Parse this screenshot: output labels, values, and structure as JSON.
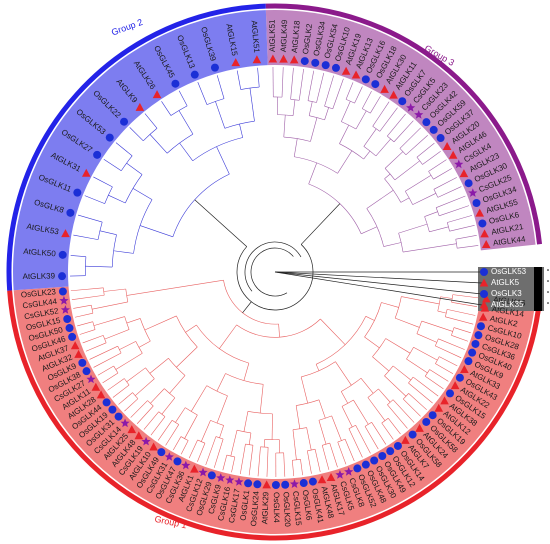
{
  "groups": [
    {
      "id": "group1",
      "label": "Group 1",
      "color": "#e8232a",
      "fill": "#f07f7f"
    },
    {
      "id": "group2",
      "label": "Group 2",
      "color": "#2323e8",
      "fill": "#7d7df0"
    },
    {
      "id": "group3",
      "label": "Group 3",
      "color": "#8b1a8b",
      "fill": "#c086c0"
    },
    {
      "id": "outgroup",
      "label": "",
      "color": "#000000",
      "fill": "#6e6e6e"
    }
  ],
  "branch_colors": {
    "group1": "#e86060",
    "group2": "#3a3ad8",
    "group3": "#a060a8",
    "root": "#222222"
  },
  "markers": {
    "circle": "#1b2fd6",
    "triangle": "#e8232a",
    "star": "#8b1aa8"
  },
  "group3_leaves": [
    "AtGLK51",
    "AtGLK49",
    "AtGLK18",
    "OsGLK2",
    "OsGLK34",
    "OsGLK54",
    "OsGLK10",
    "AtGLK19",
    "AtGLK13",
    "OsGLK16",
    "OsGLK18",
    "AtGLK30",
    "AtGLK11",
    "OsGLK7",
    "CsGLK5",
    "CsGLK23",
    "OsGLK42",
    "OsGLK59",
    "OsGLK37",
    "AtGLK20",
    "AtGLK46",
    "CsGLK4",
    "AtGLK23",
    "OsGLK30",
    "CsGLK25",
    "OsGLK34",
    "AtGLK55",
    "OsGLK6",
    "AtGLK21",
    "AtGLK44"
  ],
  "group3_markers": [
    "triangle",
    "triangle",
    "triangle",
    "circle",
    "circle",
    "circle",
    "circle",
    "triangle",
    "triangle",
    "circle",
    "circle",
    "triangle",
    "triangle",
    "circle",
    "star",
    "star",
    "circle",
    "circle",
    "circle",
    "triangle",
    "triangle",
    "star",
    "triangle",
    "circle",
    "star",
    "circle",
    "triangle",
    "circle",
    "triangle",
    "triangle"
  ],
  "outgroup_leaves": [
    "OsGLK53",
    "AtGLK5",
    "OsGLK3",
    "AtGLK35"
  ],
  "outgroup_markers": [
    "circle",
    "triangle",
    "circle",
    "triangle"
  ],
  "group1_leaves": [
    "AtGLK16",
    "AtGLK14",
    "AtGLK2",
    "CsGLK10",
    "OsGLK28",
    "CsGLK36",
    "OsGLK40",
    "OsGLK9",
    "AtGLK33",
    "OsGLK43",
    "AtGLK22",
    "OsGLK15",
    "AtGLK38",
    "AtGLK12",
    "OsGLK19",
    "OsGLK58",
    "AtGLK24",
    "OsGLK58",
    "AtGLK7",
    "OsGLK14",
    "OsGLK12",
    "OsGLK49",
    "OsGLK30",
    "OsGLK48",
    "OsGLK52",
    "CsGLK8",
    "CsGLK5",
    "AtGLK17",
    "AtGLK48",
    "OsGLK41",
    "OsGLK6",
    "CsGLK15",
    "OsGLK20",
    "OsGLK4",
    "AtGLK29",
    "OsGLK24",
    "OsGLK1",
    "CsGLK17",
    "CsGLK16",
    "CsGLK9",
    "OsGLK29",
    "CsGLK12",
    "AtGLK1",
    "CsGLK36",
    "OsGLK47",
    "CsGLK31",
    "OsGLK49",
    "AtGLK10",
    "CsGLK19",
    "AtGLK48",
    "AtGLK25",
    "CsGLK14",
    "OsGLK31",
    "OsGLK19",
    "OsGLK44",
    "AtGLK28",
    "AtGLK11",
    "CsGLK27",
    "OsGLK38",
    "OsGLK9",
    "AtGLK32",
    "AtGLK37",
    "OsGLK46",
    "OsGLK50",
    "OsGLK15",
    "CsGLK52",
    "CsGLK44",
    "OsGLK23"
  ],
  "group1_markers": [
    "triangle",
    "triangle",
    "triangle",
    "circle",
    "circle",
    "circle",
    "circle",
    "circle",
    "triangle",
    "circle",
    "triangle",
    "circle",
    "triangle",
    "triangle",
    "circle",
    "circle",
    "triangle",
    "circle",
    "triangle",
    "circle",
    "circle",
    "circle",
    "circle",
    "circle",
    "circle",
    "star",
    "star",
    "triangle",
    "triangle",
    "circle",
    "circle",
    "star",
    "circle",
    "circle",
    "triangle",
    "circle",
    "circle",
    "star",
    "star",
    "star",
    "circle",
    "star",
    "triangle",
    "star",
    "circle",
    "star",
    "circle",
    "triangle",
    "star",
    "triangle",
    "triangle",
    "star",
    "circle",
    "circle",
    "circle",
    "triangle",
    "triangle",
    "star",
    "circle",
    "circle",
    "triangle",
    "triangle",
    "circle",
    "circle",
    "circle",
    "star",
    "star",
    "circle"
  ],
  "group2_leaves": [
    "AtGLK39",
    "AtGLK50",
    "AtGLK53",
    "OsGLK8",
    "OsGLK11",
    "AtGLK31",
    "OsGLK27",
    "OsGLK53",
    "OsGLK22",
    "AtGLK9",
    "AtGLK26",
    "OsGLK45",
    "OsGLK13",
    "OsGLK39",
    "AtGLK15",
    "AtGLK51"
  ],
  "group2_markers": [
    "circle",
    "circle",
    "triangle",
    "circle",
    "circle",
    "triangle",
    "circle",
    "circle",
    "circle",
    "triangle",
    "triangle",
    "circle",
    "circle",
    "circle",
    "triangle",
    "triangle"
  ]
}
